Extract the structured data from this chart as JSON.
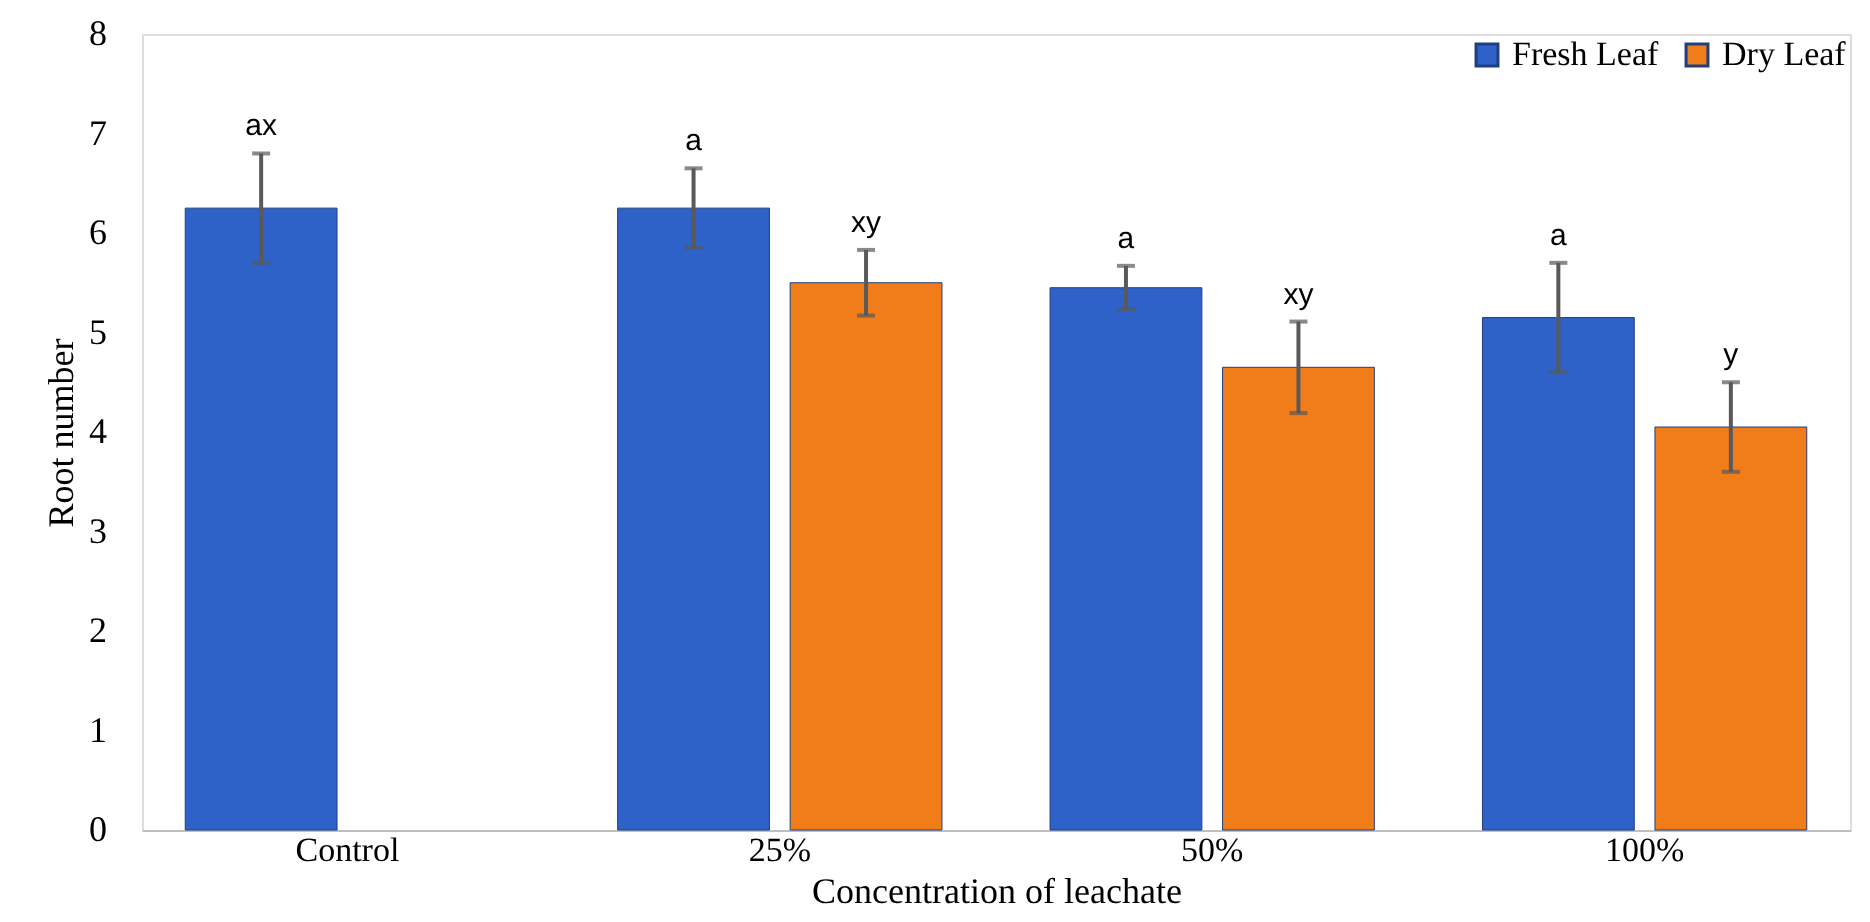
{
  "chart_data": {
    "type": "bar",
    "xlabel": "Concentration of leachate",
    "ylabel": "Root number",
    "categories": [
      "Control",
      "25%",
      "50%",
      "100%"
    ],
    "series": [
      {
        "name": "Fresh Leaf",
        "color": "#2e62c8",
        "values": [
          6.25,
          6.25,
          5.45,
          5.15
        ],
        "errors": [
          0.55,
          0.4,
          0.22,
          0.55
        ],
        "value_labels": [
          "ax",
          "a",
          "a",
          "a"
        ]
      },
      {
        "name": "Dry Leaf",
        "color": "#f07c1a",
        "values": [
          null,
          5.5,
          4.65,
          4.05
        ],
        "errors": [
          null,
          0.33,
          0.46,
          0.45
        ],
        "value_labels": [
          null,
          "xy",
          "xy",
          "y"
        ]
      }
    ],
    "ylim": [
      0,
      8
    ],
    "yticks": [
      0,
      1,
      2,
      3,
      4,
      5,
      6,
      7,
      8
    ],
    "grid": false,
    "legend": "top right"
  }
}
